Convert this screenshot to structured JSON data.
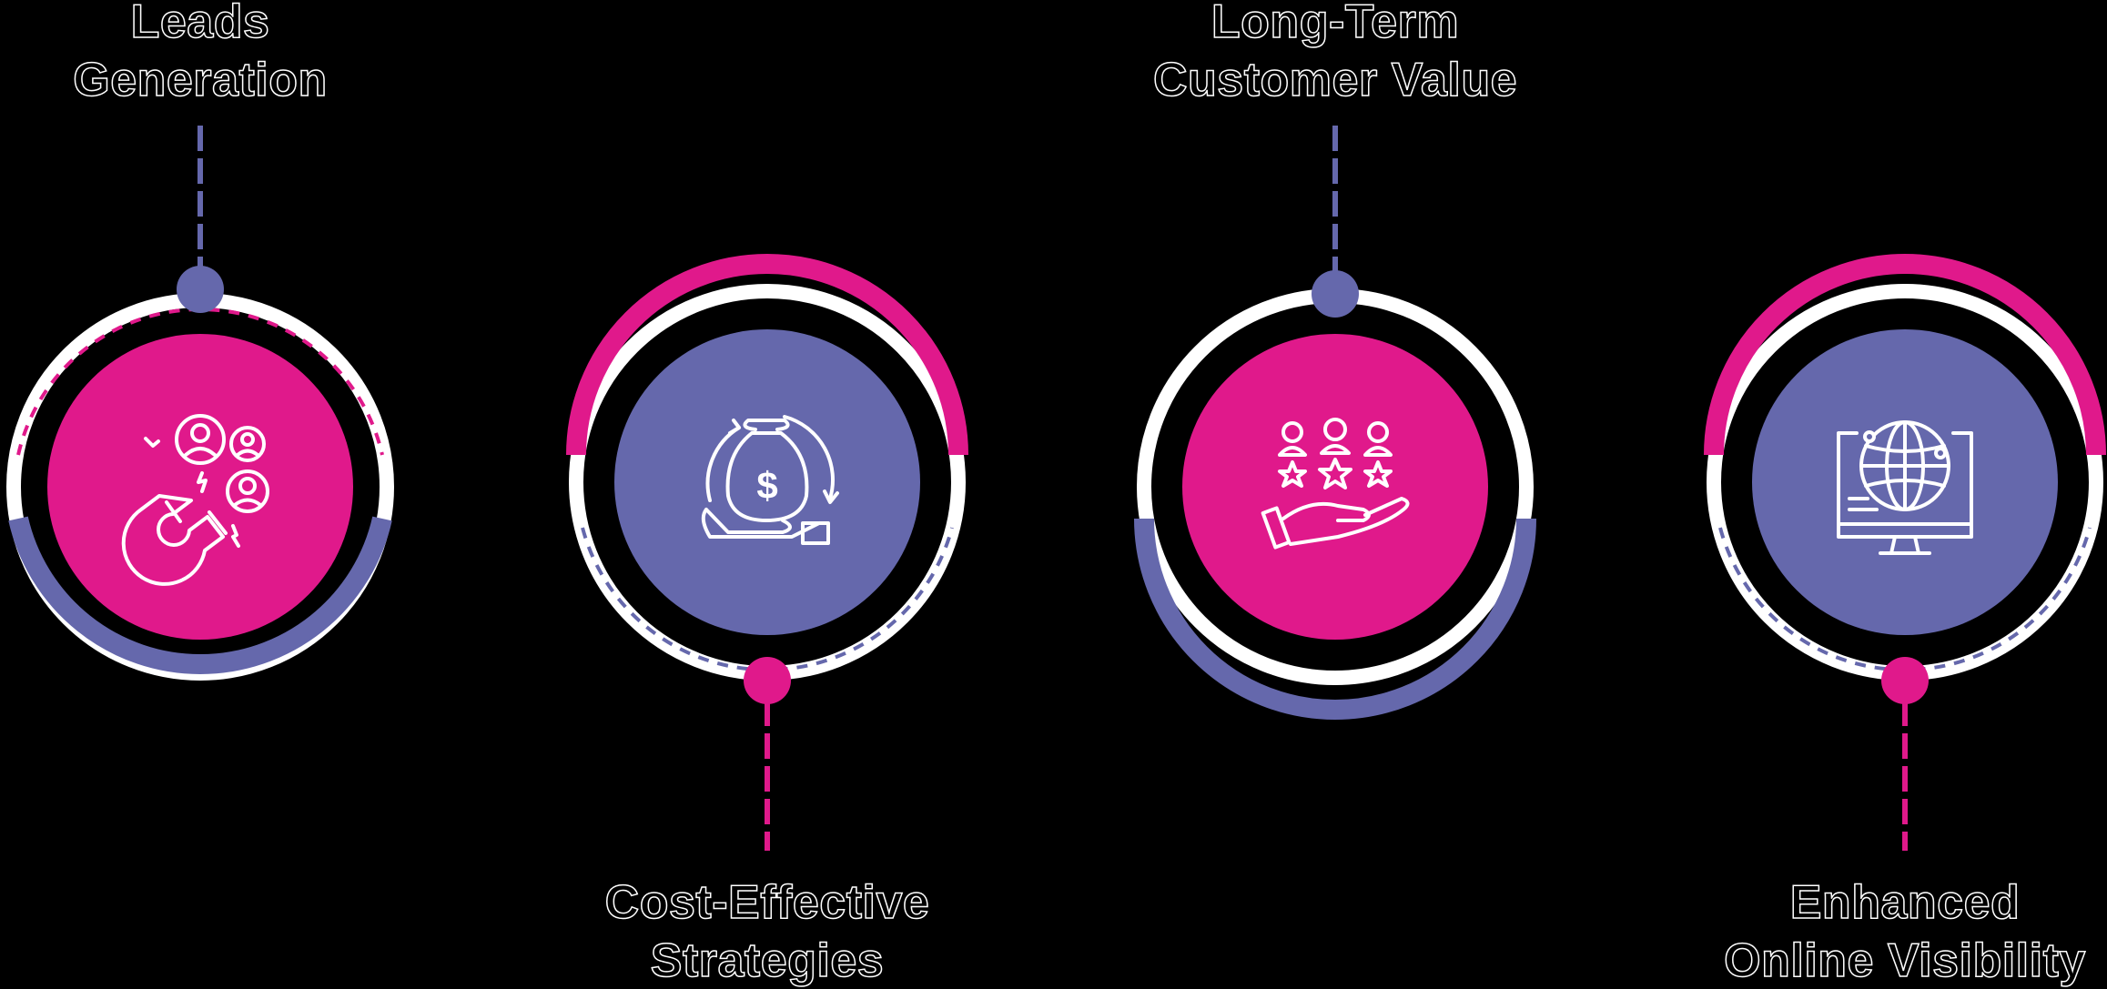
{
  "colors": {
    "magenta": "#E0198B",
    "purple": "#6568AC",
    "icon_stroke": "#FFFFFF",
    "background": "#000000"
  },
  "items": [
    {
      "line1": "Leads",
      "line2": "Generation",
      "icon": "lead-magnet-icon",
      "circle_color": "magenta",
      "pin_color": "purple",
      "label_position": "top"
    },
    {
      "line1": "Cost-Effective",
      "line2": "Strategies",
      "icon": "money-cycle-icon",
      "circle_color": "purple",
      "pin_color": "magenta",
      "label_position": "bottom"
    },
    {
      "line1": "Long-Term",
      "line2": "Customer Value",
      "icon": "customer-rating-icon",
      "circle_color": "magenta",
      "pin_color": "purple",
      "label_position": "top"
    },
    {
      "line1": "Enhanced",
      "line2": "Online Visibility",
      "icon": "online-globe-icon",
      "circle_color": "purple",
      "pin_color": "magenta",
      "label_position": "bottom"
    }
  ]
}
